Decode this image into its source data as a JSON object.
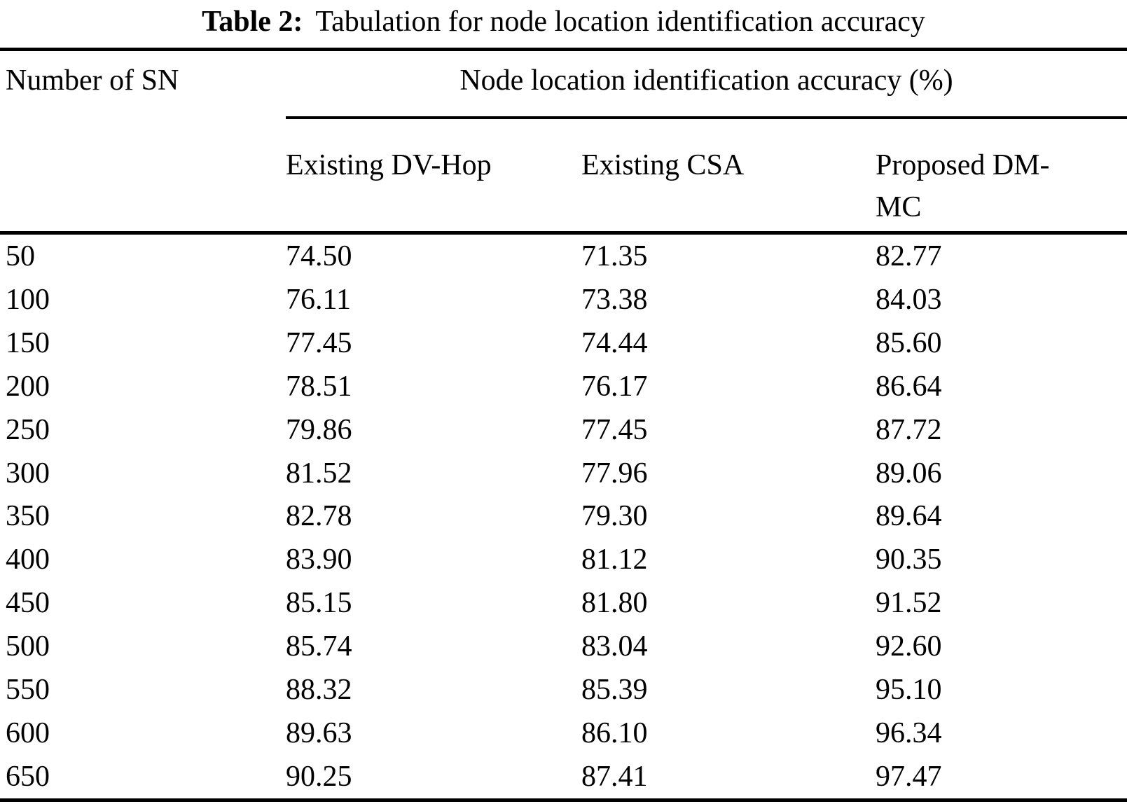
{
  "caption": {
    "label": "Table 2:",
    "text": "Tabulation for node location identification accuracy"
  },
  "table": {
    "row_header": "Number of SN",
    "span_header": "Node location identification accuracy (%)",
    "columns": [
      "Existing DV-Hop",
      "Existing CSA",
      "Proposed DM-MC"
    ],
    "rows": [
      [
        "50",
        "74.50",
        "71.35",
        "82.77"
      ],
      [
        "100",
        "76.11",
        "73.38",
        "84.03"
      ],
      [
        "150",
        "77.45",
        "74.44",
        "85.60"
      ],
      [
        "200",
        "78.51",
        "76.17",
        "86.64"
      ],
      [
        "250",
        "79.86",
        "77.45",
        "87.72"
      ],
      [
        "300",
        "81.52",
        "77.96",
        "89.06"
      ],
      [
        "350",
        "82.78",
        "79.30",
        "89.64"
      ],
      [
        "400",
        "83.90",
        "81.12",
        "90.35"
      ],
      [
        "450",
        "85.15",
        "81.80",
        "91.52"
      ],
      [
        "500",
        "85.74",
        "83.04",
        "92.60"
      ],
      [
        "550",
        "88.32",
        "85.39",
        "95.10"
      ],
      [
        "600",
        "89.63",
        "86.10",
        "96.34"
      ],
      [
        "650",
        "90.25",
        "87.41",
        "97.47"
      ]
    ]
  },
  "chart_data": {
    "type": "table",
    "title": "Table 2: Tabulation for node location identification accuracy",
    "xlabel": "Number of SN",
    "ylabel": "Node location identification accuracy (%)",
    "categories": [
      50,
      100,
      150,
      200,
      250,
      300,
      350,
      400,
      450,
      500,
      550,
      600,
      650
    ],
    "series": [
      {
        "name": "Existing DV-Hop",
        "values": [
          74.5,
          76.11,
          77.45,
          78.51,
          79.86,
          81.52,
          82.78,
          83.9,
          85.15,
          85.74,
          88.32,
          89.63,
          90.25
        ]
      },
      {
        "name": "Existing CSA",
        "values": [
          71.35,
          73.38,
          74.44,
          76.17,
          77.45,
          77.96,
          79.3,
          81.12,
          81.8,
          83.04,
          85.39,
          86.1,
          87.41
        ]
      },
      {
        "name": "Proposed DM-MC",
        "values": [
          82.77,
          84.03,
          85.6,
          86.64,
          87.72,
          89.06,
          89.64,
          90.35,
          91.52,
          92.6,
          95.1,
          96.34,
          97.47
        ]
      }
    ]
  },
  "colors": {
    "background": "#ffffff",
    "text": "#000000",
    "rule": "#000000"
  }
}
